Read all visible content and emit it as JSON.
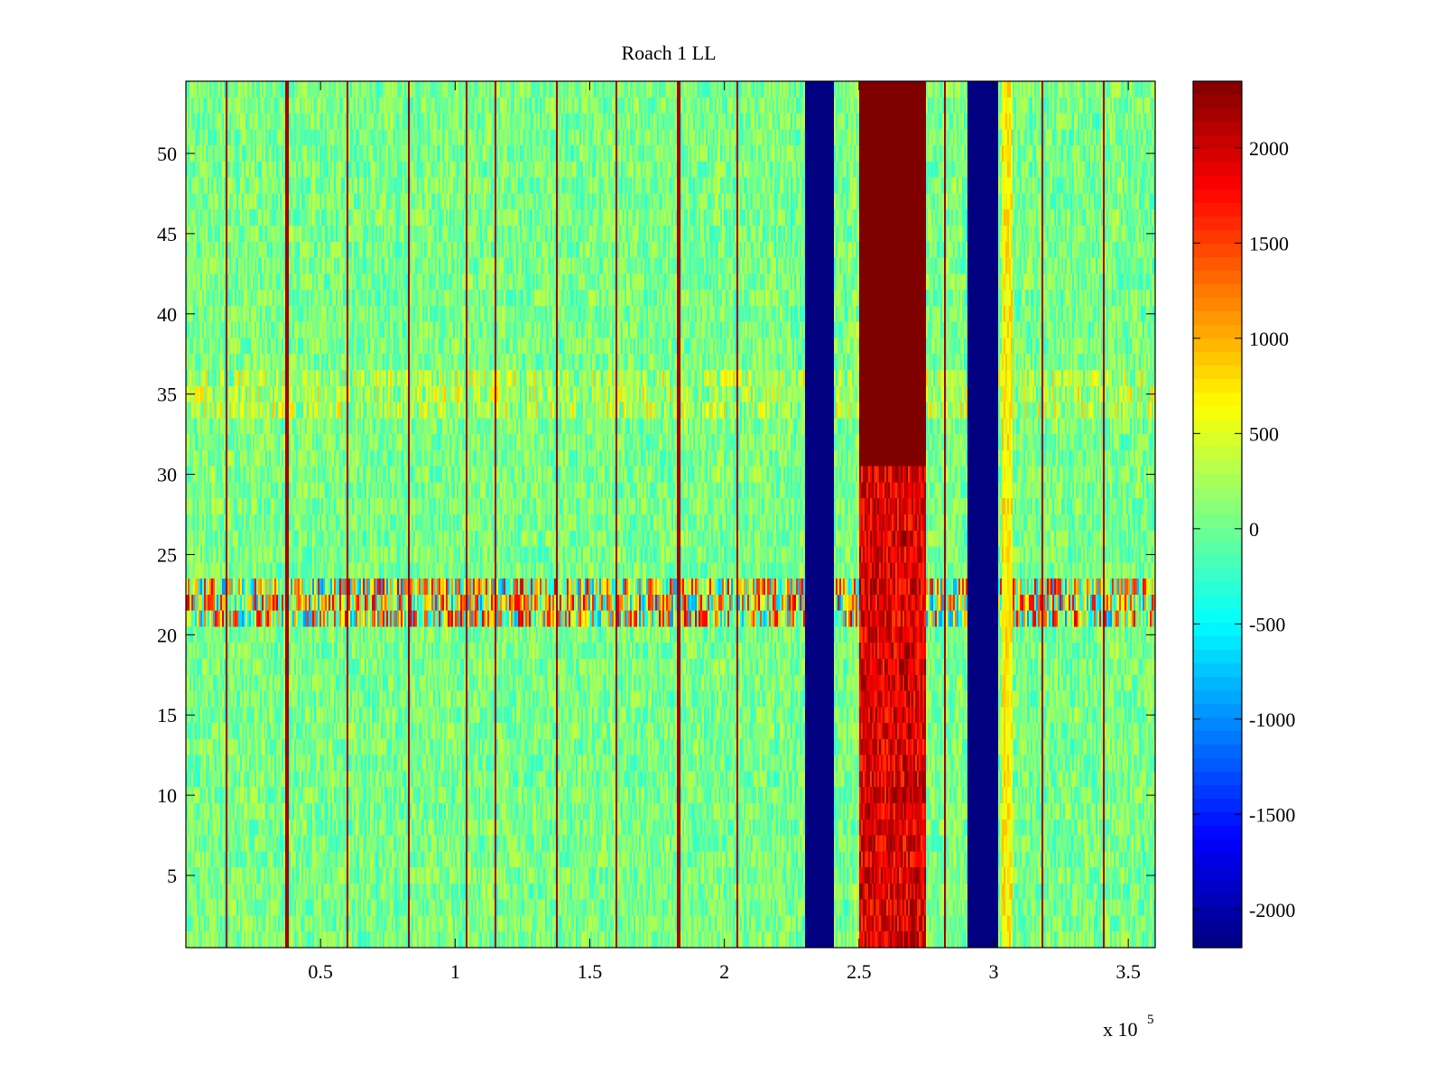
{
  "chart_data": {
    "type": "heatmap",
    "title": "Roach 1 LL",
    "xlabel": "",
    "ylabel": "",
    "x_multiplier_label": {
      "base": "x 10",
      "exponent": "5"
    },
    "xlim": [
      0,
      360000
    ],
    "ylim": [
      0.5,
      54.5
    ],
    "x_ticks": [
      {
        "value": 50000,
        "label": "0.5"
      },
      {
        "value": 100000,
        "label": "1"
      },
      {
        "value": 150000,
        "label": "1.5"
      },
      {
        "value": 200000,
        "label": "2"
      },
      {
        "value": 250000,
        "label": "2.5"
      },
      {
        "value": 300000,
        "label": "3"
      },
      {
        "value": 350000,
        "label": "3.5"
      }
    ],
    "y_ticks": [
      {
        "value": 5,
        "label": "5"
      },
      {
        "value": 10,
        "label": "10"
      },
      {
        "value": 15,
        "label": "15"
      },
      {
        "value": 20,
        "label": "20"
      },
      {
        "value": 25,
        "label": "25"
      },
      {
        "value": 30,
        "label": "30"
      },
      {
        "value": 35,
        "label": "35"
      },
      {
        "value": 40,
        "label": "40"
      },
      {
        "value": 45,
        "label": "45"
      },
      {
        "value": 50,
        "label": "50"
      }
    ],
    "colormap": "jet",
    "clim": [
      -2200,
      2350
    ],
    "colorbar_ticks": [
      {
        "value": 2000,
        "label": "2000"
      },
      {
        "value": 1500,
        "label": "1500"
      },
      {
        "value": 1000,
        "label": "1000"
      },
      {
        "value": 500,
        "label": "500"
      },
      {
        "value": 0,
        "label": "0"
      },
      {
        "value": -500,
        "label": "-500"
      },
      {
        "value": -1000,
        "label": "-1000"
      },
      {
        "value": -1500,
        "label": "-1500"
      },
      {
        "value": -2000,
        "label": "-2000"
      }
    ],
    "n_rows": 54,
    "background_range": [
      -300,
      400
    ],
    "vertical_bands": [
      {
        "x0": 230000,
        "x1": 240500,
        "value": -2200,
        "label": "low band"
      },
      {
        "x0": 250000,
        "x1": 275000,
        "value": 2350,
        "label": "high band",
        "lower_rows_value_range": [
          1500,
          2350
        ],
        "lower_rows_max": 30
      },
      {
        "x0": 290000,
        "x1": 301500,
        "value": -2200,
        "label": "low band"
      },
      {
        "x0": 303000,
        "x1": 307000,
        "value": 700,
        "label": "warm band"
      }
    ],
    "vertical_lines_x": [
      15000,
      37500,
      60000,
      83000,
      104000,
      115000,
      138000,
      160000,
      183000,
      205000,
      282000,
      318000,
      341000
    ],
    "vertical_line_value": 2200,
    "horizontal_band": {
      "row_min": 21,
      "row_max": 23,
      "value_range": [
        -1000,
        2000
      ]
    },
    "weak_row_band": {
      "row_min": 34,
      "row_max": 36,
      "value_range": [
        0,
        900
      ]
    }
  }
}
